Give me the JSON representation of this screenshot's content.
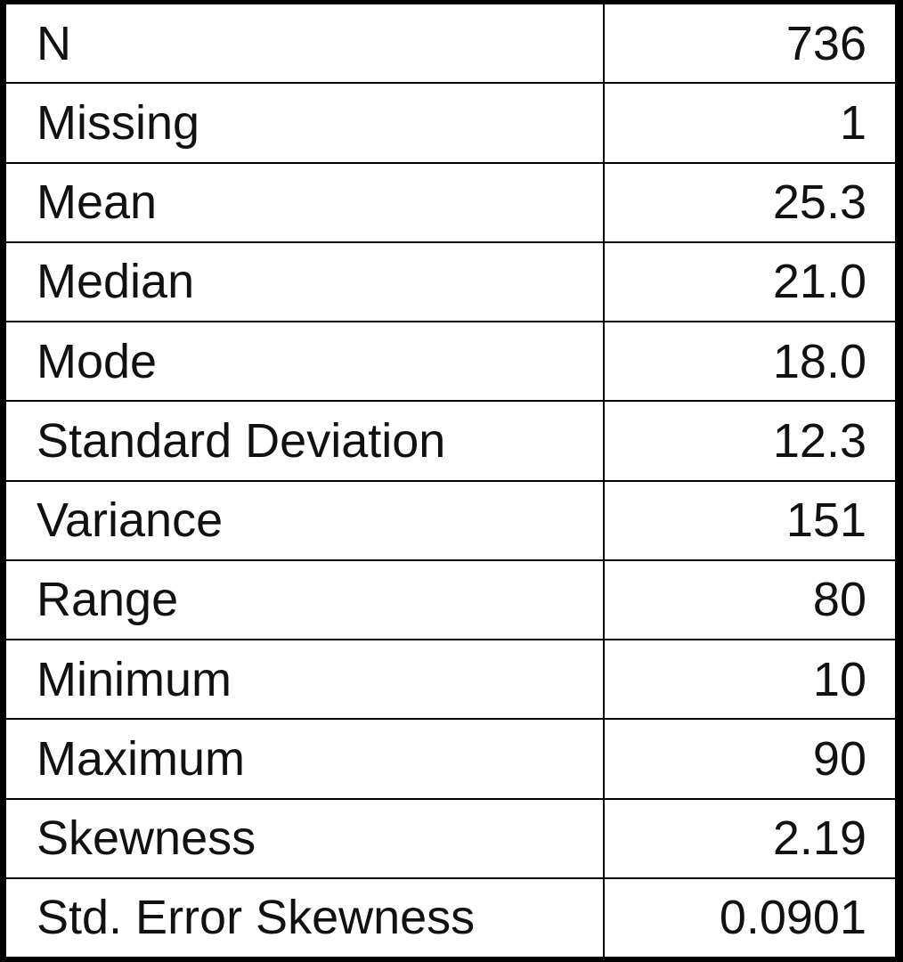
{
  "table": {
    "rows": [
      {
        "label": "N",
        "value": "736"
      },
      {
        "label": "Missing",
        "value": "1"
      },
      {
        "label": "Mean",
        "value": "25.3"
      },
      {
        "label": "Median",
        "value": "21.0"
      },
      {
        "label": "Mode",
        "value": "18.0"
      },
      {
        "label": "Standard Deviation",
        "value": "12.3"
      },
      {
        "label": "Variance",
        "value": "151"
      },
      {
        "label": "Range",
        "value": "80"
      },
      {
        "label": "Minimum",
        "value": "10"
      },
      {
        "label": "Maximum",
        "value": "90"
      },
      {
        "label": "Skewness",
        "value": "2.19"
      },
      {
        "label": "Std. Error Skewness",
        "value": "0.0901"
      }
    ]
  }
}
